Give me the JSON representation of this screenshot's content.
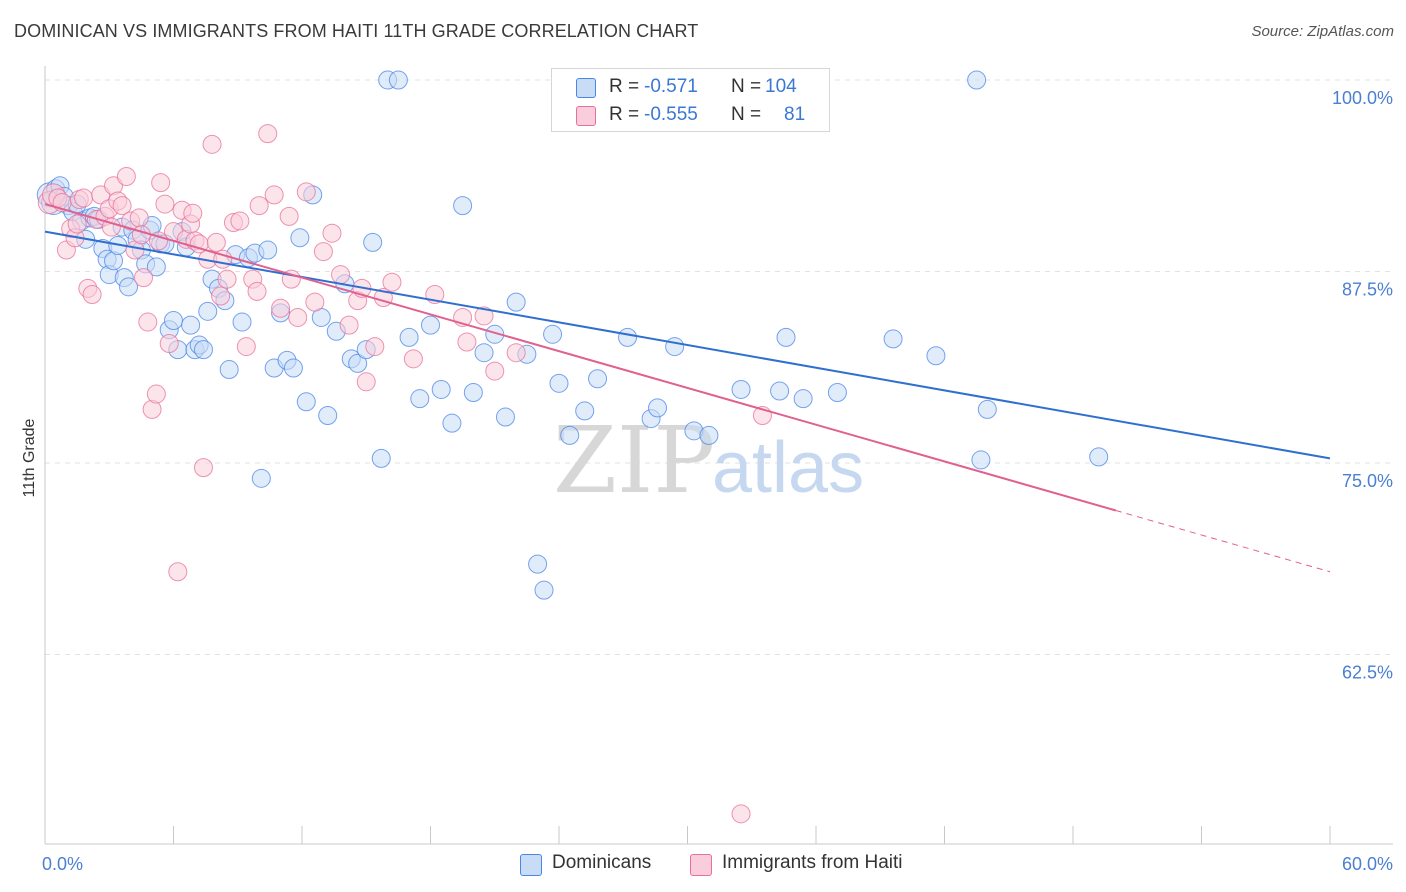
{
  "header": {
    "title": "DOMINICAN VS IMMIGRANTS FROM HAITI 11TH GRADE CORRELATION CHART",
    "source": "Source: ZipAtlas.com"
  },
  "legend": {
    "series1": {
      "r_label": "R =",
      "r_value": "-0.571",
      "n_label": "N =",
      "n_value": "104"
    },
    "series2": {
      "r_label": "R =",
      "r_value": "-0.555",
      "n_label": "N =",
      "n_value": "81"
    }
  },
  "bottom_legend": {
    "series1": "Dominicans",
    "series2": "Immigrants from Haiti"
  },
  "watermark": {
    "zip": "ZIP",
    "atlas": "atlas"
  },
  "colors": {
    "blue": "#4a86e8",
    "blue_fill": "#c9dcf6",
    "pink": "#e8709a",
    "pink_fill": "#f9cddb",
    "tick": "#4a7fd1"
  },
  "chart_data": {
    "type": "scatter",
    "title": "DOMINICAN VS IMMIGRANTS FROM HAITI 11TH GRADE CORRELATION CHART",
    "xlabel": "",
    "ylabel": "11th Grade",
    "xlim": [
      0,
      60
    ],
    "ylim": [
      50,
      101.5
    ],
    "x_tick_labels": [
      "0.0%",
      "60.0%"
    ],
    "y_ticks": [
      100,
      87.5,
      75,
      62.5
    ],
    "y_tick_labels": [
      "100.0%",
      "87.5%",
      "75.0%",
      "62.5%"
    ],
    "series": [
      {
        "name": "Dominicans",
        "r": -0.571,
        "n": 104,
        "trend": {
          "x": [
            0,
            60
          ],
          "y": [
            90.1,
            75.3
          ]
        },
        "points": [
          [
            0.2,
            92.5
          ],
          [
            0.4,
            92.0
          ],
          [
            0.5,
            92.9
          ],
          [
            0.7,
            93.1
          ],
          [
            0.9,
            92.4
          ],
          [
            1.1,
            91.8
          ],
          [
            1.3,
            91.4
          ],
          [
            1.5,
            91.9
          ],
          [
            1.7,
            90.8
          ],
          [
            1.9,
            89.6
          ],
          [
            2.1,
            91.0
          ],
          [
            2.3,
            91.1
          ],
          [
            2.5,
            90.9
          ],
          [
            2.7,
            89.0
          ],
          [
            2.9,
            88.3
          ],
          [
            3.0,
            87.3
          ],
          [
            3.2,
            88.2
          ],
          [
            3.4,
            89.2
          ],
          [
            3.6,
            90.4
          ],
          [
            3.7,
            87.1
          ],
          [
            3.9,
            86.5
          ],
          [
            4.1,
            90.2
          ],
          [
            4.3,
            89.6
          ],
          [
            4.5,
            88.9
          ],
          [
            4.7,
            88.0
          ],
          [
            4.9,
            90.2
          ],
          [
            5.0,
            90.5
          ],
          [
            5.2,
            87.8
          ],
          [
            5.4,
            89.3
          ],
          [
            5.6,
            89.3
          ],
          [
            5.8,
            83.7
          ],
          [
            6.0,
            84.3
          ],
          [
            6.2,
            82.4
          ],
          [
            6.4,
            90.1
          ],
          [
            6.6,
            89.1
          ],
          [
            6.8,
            84.0
          ],
          [
            7.0,
            82.4
          ],
          [
            7.2,
            82.7
          ],
          [
            7.4,
            82.4
          ],
          [
            7.6,
            84.9
          ],
          [
            7.8,
            87.0
          ],
          [
            8.1,
            86.4
          ],
          [
            8.4,
            85.6
          ],
          [
            8.6,
            81.1
          ],
          [
            8.9,
            88.6
          ],
          [
            9.2,
            84.2
          ],
          [
            9.5,
            88.4
          ],
          [
            9.8,
            88.7
          ],
          [
            10.1,
            74.0
          ],
          [
            10.4,
            88.9
          ],
          [
            10.7,
            81.2
          ],
          [
            11.0,
            84.8
          ],
          [
            11.3,
            81.7
          ],
          [
            11.6,
            81.2
          ],
          [
            11.9,
            89.7
          ],
          [
            12.2,
            79.0
          ],
          [
            12.5,
            92.5
          ],
          [
            12.9,
            84.5
          ],
          [
            13.2,
            78.1
          ],
          [
            13.6,
            83.6
          ],
          [
            14.0,
            86.7
          ],
          [
            14.3,
            81.8
          ],
          [
            14.6,
            81.5
          ],
          [
            15.0,
            82.4
          ],
          [
            15.3,
            89.4
          ],
          [
            15.7,
            75.3
          ],
          [
            16.0,
            100.0
          ],
          [
            16.5,
            100.0
          ],
          [
            17.0,
            83.2
          ],
          [
            17.5,
            79.2
          ],
          [
            18.0,
            84.0
          ],
          [
            18.5,
            79.8
          ],
          [
            19.0,
            77.6
          ],
          [
            19.5,
            91.8
          ],
          [
            20.0,
            79.6
          ],
          [
            20.5,
            82.2
          ],
          [
            21.0,
            83.4
          ],
          [
            21.5,
            78.0
          ],
          [
            22.0,
            85.5
          ],
          [
            22.5,
            82.1
          ],
          [
            23.0,
            68.4
          ],
          [
            23.3,
            66.7
          ],
          [
            23.7,
            83.4
          ],
          [
            24.0,
            80.2
          ],
          [
            24.5,
            76.8
          ],
          [
            25.2,
            78.4
          ],
          [
            25.8,
            80.5
          ],
          [
            27.2,
            83.2
          ],
          [
            28.3,
            77.9
          ],
          [
            28.6,
            78.6
          ],
          [
            29.4,
            82.6
          ],
          [
            30.3,
            77.1
          ],
          [
            31.0,
            76.8
          ],
          [
            32.5,
            79.8
          ],
          [
            34.3,
            79.7
          ],
          [
            34.6,
            83.2
          ],
          [
            35.4,
            79.2
          ],
          [
            37.0,
            79.6
          ],
          [
            39.6,
            83.1
          ],
          [
            41.6,
            82.0
          ],
          [
            43.7,
            75.2
          ],
          [
            44.0,
            78.5
          ],
          [
            49.2,
            75.4
          ],
          [
            43.5,
            100.0
          ]
        ]
      },
      {
        "name": "Immigrants from Haiti",
        "r": -0.555,
        "n": 81,
        "trend": {
          "x": [
            0,
            50
          ],
          "y": [
            91.9,
            71.9
          ]
        },
        "trend_dashed": {
          "x": [
            50,
            60
          ],
          "y": [
            71.9,
            67.9
          ]
        },
        "points": [
          [
            0.2,
            92.0
          ],
          [
            0.4,
            92.5
          ],
          [
            0.6,
            92.3
          ],
          [
            0.8,
            92.0
          ],
          [
            1.0,
            88.9
          ],
          [
            1.2,
            90.3
          ],
          [
            1.4,
            89.7
          ],
          [
            1.6,
            92.2
          ],
          [
            1.8,
            92.3
          ],
          [
            2.0,
            86.4
          ],
          [
            2.2,
            86.0
          ],
          [
            2.4,
            90.9
          ],
          [
            2.6,
            92.5
          ],
          [
            2.8,
            91.1
          ],
          [
            3.0,
            91.6
          ],
          [
            3.2,
            93.1
          ],
          [
            3.4,
            92.1
          ],
          [
            3.6,
            91.8
          ],
          [
            3.8,
            93.7
          ],
          [
            4.0,
            90.8
          ],
          [
            4.2,
            88.9
          ],
          [
            4.4,
            91.0
          ],
          [
            4.6,
            87.1
          ],
          [
            4.8,
            84.2
          ],
          [
            5.0,
            78.5
          ],
          [
            5.2,
            79.5
          ],
          [
            5.4,
            93.3
          ],
          [
            5.6,
            91.9
          ],
          [
            5.8,
            82.8
          ],
          [
            6.0,
            90.1
          ],
          [
            6.2,
            67.9
          ],
          [
            6.4,
            91.5
          ],
          [
            6.6,
            89.6
          ],
          [
            6.8,
            90.6
          ],
          [
            7.0,
            89.5
          ],
          [
            7.2,
            89.3
          ],
          [
            7.4,
            74.7
          ],
          [
            7.6,
            88.3
          ],
          [
            7.8,
            95.8
          ],
          [
            8.0,
            89.4
          ],
          [
            8.2,
            85.9
          ],
          [
            8.5,
            87.0
          ],
          [
            8.8,
            90.7
          ],
          [
            9.1,
            90.8
          ],
          [
            9.4,
            82.6
          ],
          [
            9.7,
            87.0
          ],
          [
            10.0,
            91.8
          ],
          [
            10.4,
            96.5
          ],
          [
            10.7,
            92.5
          ],
          [
            11.0,
            85.1
          ],
          [
            11.4,
            91.1
          ],
          [
            11.8,
            84.5
          ],
          [
            12.2,
            92.7
          ],
          [
            12.6,
            85.5
          ],
          [
            13.0,
            88.8
          ],
          [
            13.4,
            90.0
          ],
          [
            13.8,
            87.3
          ],
          [
            14.2,
            84.0
          ],
          [
            14.6,
            85.6
          ],
          [
            15.0,
            80.3
          ],
          [
            15.4,
            82.6
          ],
          [
            15.8,
            85.8
          ],
          [
            16.2,
            86.8
          ],
          [
            17.2,
            81.8
          ],
          [
            19.5,
            84.5
          ],
          [
            19.7,
            82.9
          ],
          [
            20.5,
            84.6
          ],
          [
            21.0,
            81.0
          ],
          [
            22.0,
            82.2
          ],
          [
            33.5,
            78.1
          ],
          [
            32.5,
            52.1
          ],
          [
            4.5,
            89.9
          ],
          [
            5.3,
            89.5
          ],
          [
            8.3,
            88.3
          ],
          [
            11.5,
            87.0
          ],
          [
            9.9,
            86.2
          ],
          [
            14.8,
            86.4
          ],
          [
            18.2,
            86.0
          ],
          [
            6.9,
            91.3
          ],
          [
            3.1,
            90.4
          ],
          [
            1.5,
            90.6
          ]
        ]
      }
    ]
  }
}
